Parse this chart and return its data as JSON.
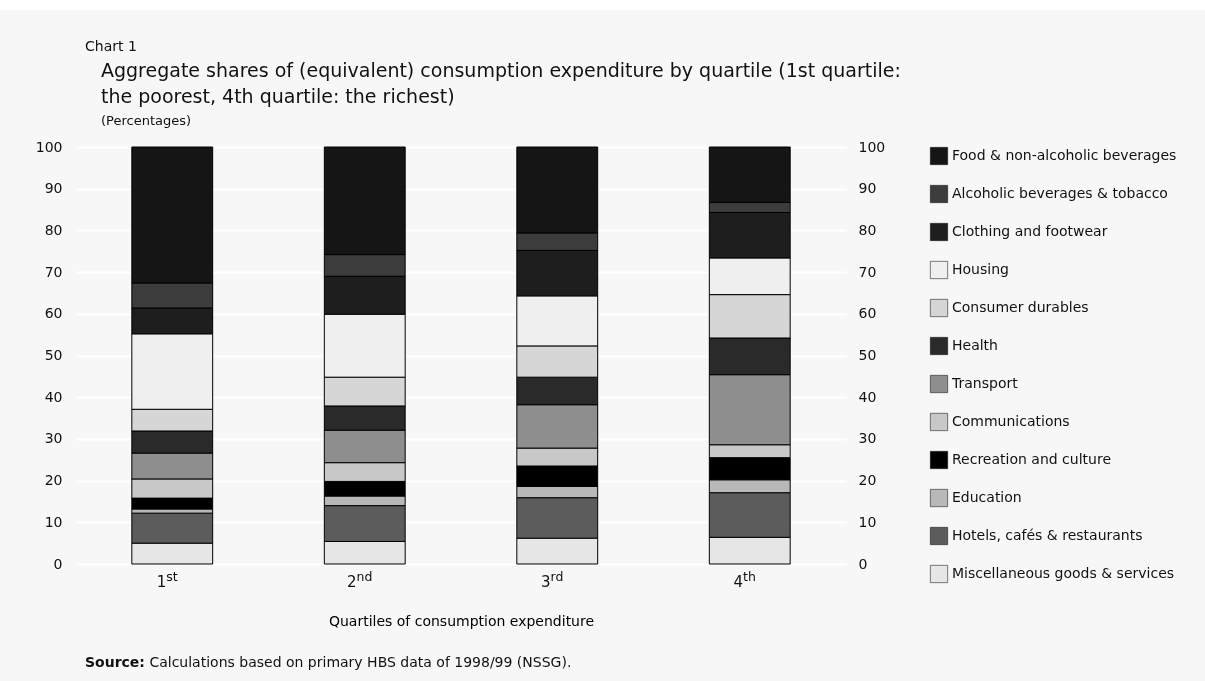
{
  "chart_data": {
    "type": "bar",
    "stacked": true,
    "title": "Aggregate shares of (equivalent) consumption expenditure by quartile (1st quartile: the poorest, 4th quartile: the richest)",
    "subtitle": "(Percentages)",
    "xlabel": "Quartiles of consumption expenditure",
    "annotations": [
      "Chart  1",
      "Source: Calculations based on primary HBS data of 1998/99 (NSSG)."
    ],
    "categories": [
      "1$^{st}$",
      "2$^{nd}$",
      "3$^{rd}$",
      "4$^{th}$"
    ],
    "ylim": [
      0,
      100
    ],
    "yticks": [
      0,
      10,
      20,
      30,
      40,
      50,
      60,
      70,
      80,
      90,
      100
    ],
    "y2lim": [
      0,
      100
    ],
    "y2ticks": [
      0,
      10,
      20,
      30,
      40,
      50,
      60,
      70,
      80,
      90,
      100
    ],
    "grid": true,
    "legend": "right",
    "series": [
      {
        "name": "Miscellaneous goods & services",
        "color": "#e6e6e6",
        "values": [
          5.0,
          5.4,
          6.2,
          6.4
        ]
      },
      {
        "name": "Hotels, cafés & restaurants",
        "color": "#5c5c5c",
        "values": [
          7.2,
          8.6,
          9.7,
          10.7
        ]
      },
      {
        "name": "Education",
        "color": "#b8b8b8",
        "values": [
          1.0,
          2.3,
          2.7,
          3.1
        ]
      },
      {
        "name": "Recreation and culture",
        "color": "#000000",
        "values": [
          2.6,
          3.5,
          4.9,
          5.3
        ]
      },
      {
        "name": "Communications",
        "color": "#c8c8c8",
        "values": [
          4.6,
          4.5,
          4.3,
          3.1
        ]
      },
      {
        "name": "Transport",
        "color": "#8e8e8e",
        "values": [
          6.2,
          7.8,
          10.4,
          16.8
        ]
      },
      {
        "name": "Health",
        "color": "#2a2a2a",
        "values": [
          5.3,
          5.8,
          6.6,
          8.8
        ]
      },
      {
        "name": "Consumer durables",
        "color": "#d6d6d6",
        "values": [
          5.2,
          6.9,
          7.5,
          10.4
        ]
      },
      {
        "name": "Housing",
        "color": "#efefef",
        "values": [
          18.1,
          15.1,
          12.0,
          8.8
        ]
      },
      {
        "name": "Clothing and footwear",
        "color": "#1e1e1e",
        "values": [
          6.2,
          9.1,
          10.9,
          10.9
        ]
      },
      {
        "name": "Alcoholic beverages & tobacco",
        "color": "#3c3c3c",
        "values": [
          6.0,
          5.2,
          4.2,
          2.4
        ]
      },
      {
        "name": "Food & non-alcoholic beverages",
        "color": "#151515",
        "values": [
          32.6,
          25.8,
          20.6,
          13.3
        ]
      }
    ]
  }
}
